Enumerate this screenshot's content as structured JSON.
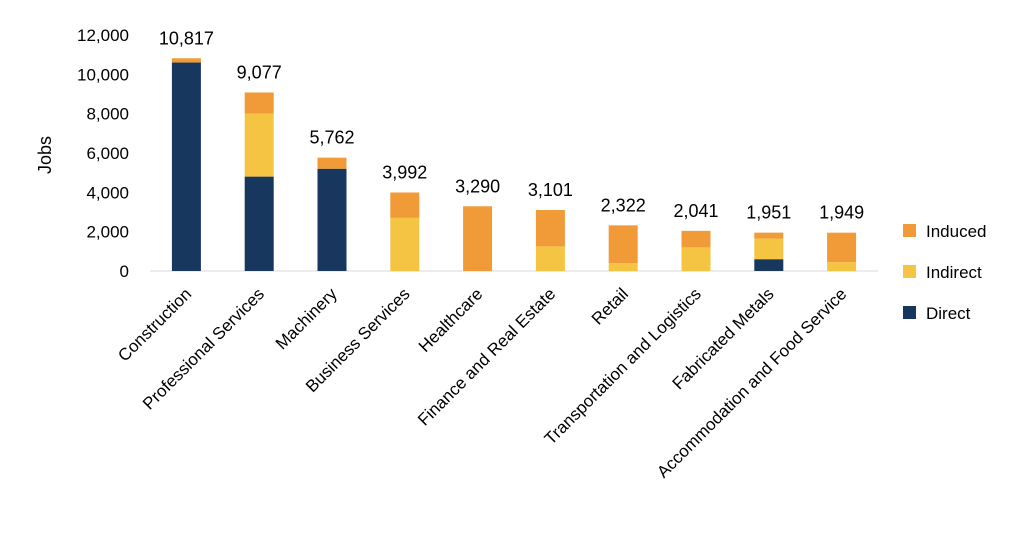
{
  "chart_data": {
    "type": "bar",
    "stacked": true,
    "title": "",
    "xlabel": "",
    "ylabel": "Jobs",
    "ylim": [
      0,
      12000
    ],
    "yticks": [
      "0",
      "2,000",
      "4,000",
      "6,000",
      "8,000",
      "10,000",
      "12,000"
    ],
    "grid": false,
    "legend_position": "right",
    "categories": [
      "Construction",
      "Professional Services",
      "Machinery",
      "Business Services",
      "Healthcare",
      "Finance and Real Estate",
      "Retail",
      "Transportation and Logistics",
      "Fabricated Metals",
      "Accommodation and Food Service"
    ],
    "totals": [
      "10,817",
      "9,077",
      "5,762",
      "3,992",
      "3,290",
      "3,101",
      "2,322",
      "2,041",
      "1,951",
      "1,949"
    ],
    "series": [
      {
        "name": "Direct",
        "color": "#17375e",
        "values": [
          10600,
          4800,
          5200,
          0,
          0,
          0,
          0,
          0,
          600,
          0
        ]
      },
      {
        "name": "Indirect",
        "color": "#f6c443",
        "values": [
          0,
          3200,
          0,
          2700,
          0,
          1250,
          400,
          1200,
          1050,
          450
        ]
      },
      {
        "name": "Induced",
        "color": "#f09b38",
        "values": [
          217,
          1077,
          562,
          1292,
          3290,
          1851,
          1922,
          841,
          301,
          1499
        ]
      }
    ],
    "legend_order": [
      "Induced",
      "Indirect",
      "Direct"
    ]
  }
}
